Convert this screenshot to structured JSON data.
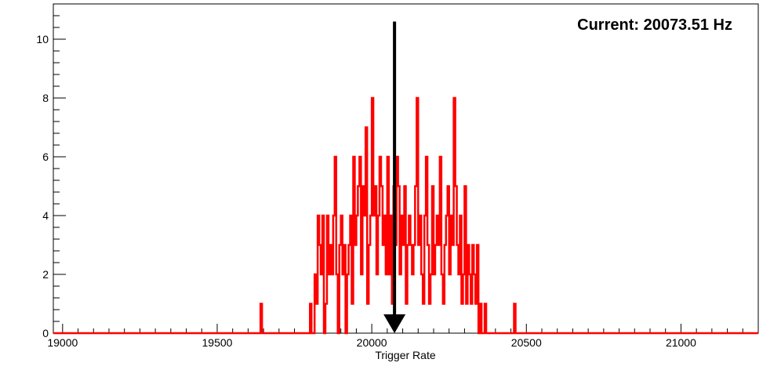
{
  "chart_data": {
    "type": "histogram",
    "title": "",
    "xlabel": "Trigger Rate",
    "ylabel": "",
    "xlim": [
      18970,
      21250
    ],
    "ylim": [
      0,
      11.2
    ],
    "x_ticks": [
      19000,
      19500,
      20000,
      20500,
      21000
    ],
    "y_ticks": [
      0,
      2,
      4,
      6,
      8,
      10
    ],
    "grid": false,
    "legend": "none",
    "bin_width": 5,
    "series": [
      {
        "color": "#ff0000",
        "bins": [
          [
            19640,
            1
          ],
          [
            19800,
            1
          ],
          [
            19815,
            2
          ],
          [
            19820,
            1
          ],
          [
            19825,
            4
          ],
          [
            19830,
            3
          ],
          [
            19835,
            2
          ],
          [
            19840,
            4
          ],
          [
            19850,
            1
          ],
          [
            19855,
            4
          ],
          [
            19860,
            2
          ],
          [
            19865,
            3
          ],
          [
            19870,
            2
          ],
          [
            19875,
            4
          ],
          [
            19880,
            6
          ],
          [
            19885,
            2
          ],
          [
            19895,
            3
          ],
          [
            19900,
            4
          ],
          [
            19905,
            2
          ],
          [
            19910,
            3
          ],
          [
            19920,
            2
          ],
          [
            19925,
            3
          ],
          [
            19930,
            4
          ],
          [
            19935,
            1
          ],
          [
            19940,
            6
          ],
          [
            19945,
            3
          ],
          [
            19950,
            4
          ],
          [
            19955,
            5
          ],
          [
            19960,
            6
          ],
          [
            19965,
            2
          ],
          [
            19970,
            5
          ],
          [
            19975,
            4
          ],
          [
            19980,
            7
          ],
          [
            19985,
            1
          ],
          [
            19990,
            3
          ],
          [
            19995,
            4
          ],
          [
            20000,
            8
          ],
          [
            20005,
            4
          ],
          [
            20010,
            5
          ],
          [
            20015,
            2
          ],
          [
            20020,
            4
          ],
          [
            20025,
            6
          ],
          [
            20030,
            5
          ],
          [
            20035,
            3
          ],
          [
            20040,
            4
          ],
          [
            20045,
            2
          ],
          [
            20050,
            6
          ],
          [
            20055,
            2
          ],
          [
            20060,
            4
          ],
          [
            20065,
            1
          ],
          [
            20070,
            5
          ],
          [
            20075,
            3
          ],
          [
            20080,
            6
          ],
          [
            20085,
            5
          ],
          [
            20090,
            2
          ],
          [
            20095,
            4
          ],
          [
            20100,
            3
          ],
          [
            20105,
            5
          ],
          [
            20110,
            1
          ],
          [
            20115,
            3
          ],
          [
            20120,
            4
          ],
          [
            20125,
            3
          ],
          [
            20130,
            2
          ],
          [
            20135,
            3
          ],
          [
            20140,
            5
          ],
          [
            20145,
            8
          ],
          [
            20150,
            3
          ],
          [
            20155,
            4
          ],
          [
            20160,
            2
          ],
          [
            20165,
            1
          ],
          [
            20170,
            4
          ],
          [
            20175,
            6
          ],
          [
            20180,
            3
          ],
          [
            20185,
            1
          ],
          [
            20190,
            2
          ],
          [
            20195,
            5
          ],
          [
            20200,
            2
          ],
          [
            20205,
            3
          ],
          [
            20210,
            4
          ],
          [
            20215,
            3
          ],
          [
            20220,
            6
          ],
          [
            20225,
            2
          ],
          [
            20230,
            1
          ],
          [
            20235,
            3
          ],
          [
            20240,
            4
          ],
          [
            20245,
            5
          ],
          [
            20250,
            2
          ],
          [
            20255,
            4
          ],
          [
            20260,
            3
          ],
          [
            20265,
            8
          ],
          [
            20270,
            5
          ],
          [
            20275,
            3
          ],
          [
            20280,
            2
          ],
          [
            20285,
            4
          ],
          [
            20290,
            1
          ],
          [
            20295,
            2
          ],
          [
            20300,
            5
          ],
          [
            20305,
            1
          ],
          [
            20310,
            3
          ],
          [
            20315,
            2
          ],
          [
            20320,
            1
          ],
          [
            20325,
            3
          ],
          [
            20330,
            2
          ],
          [
            20335,
            1
          ],
          [
            20340,
            3
          ],
          [
            20350,
            1
          ],
          [
            20365,
            1
          ],
          [
            20460,
            1
          ]
        ]
      }
    ],
    "annotations": [
      {
        "text": "Current: 20073.51 Hz",
        "position": "top-right"
      },
      {
        "type": "arrow",
        "x": 20073.51,
        "direction": "down",
        "color": "#000000"
      }
    ]
  }
}
